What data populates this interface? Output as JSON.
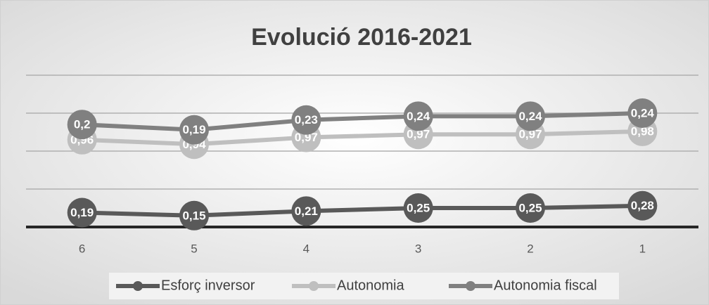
{
  "chart_data": {
    "type": "line",
    "stacked": true,
    "title": "Evolució 2016-2021",
    "categories": [
      "6",
      "5",
      "4",
      "3",
      "2",
      "1"
    ],
    "series": [
      {
        "name": "Esforç inversor",
        "color": "#595959",
        "values": [
          0.19,
          0.15,
          0.21,
          0.25,
          0.25,
          0.28
        ],
        "value_labels": [
          "0,19",
          "0,15",
          "0,21",
          "0,25",
          "0,25",
          "0,28"
        ]
      },
      {
        "name": "Autonomia",
        "color": "#bfbfbf",
        "values": [
          0.96,
          0.94,
          0.97,
          0.97,
          0.97,
          0.98
        ],
        "value_labels": [
          "0,96",
          "0,94",
          "0,97",
          "0,97",
          "0,97",
          "0,98"
        ]
      },
      {
        "name": "Autonomia fiscal",
        "color": "#808080",
        "values": [
          0.2,
          0.19,
          0.23,
          0.24,
          0.24,
          0.24
        ],
        "value_labels": [
          "0,2",
          "0,19",
          "0,23",
          "0,24",
          "0,24",
          "0,24"
        ]
      }
    ],
    "ylim": [
      0,
      2
    ],
    "yticks": [
      0,
      0.5,
      1,
      1.5,
      2
    ],
    "grid": true,
    "legend": "bottom"
  }
}
